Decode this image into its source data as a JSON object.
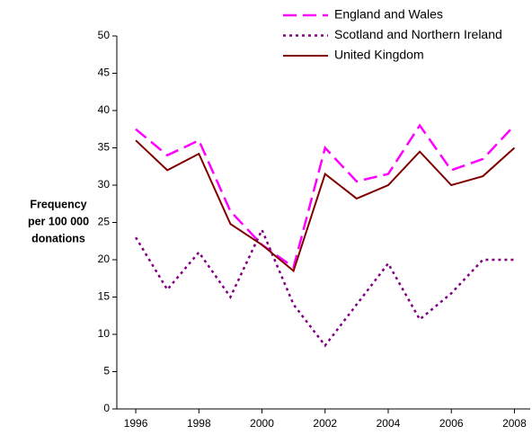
{
  "chart_data": {
    "type": "line",
    "y_label": [
      "Frequency",
      "per 100 000",
      "donations"
    ],
    "x": [
      1996,
      1997,
      1998,
      1999,
      2000,
      2001,
      2002,
      2003,
      2004,
      2005,
      2006,
      2007,
      2008
    ],
    "series": [
      {
        "name": "England and Wales",
        "color": "#ff00ff",
        "style": "dashed",
        "values": [
          37.5,
          34,
          36,
          26.5,
          22,
          19,
          35,
          30.5,
          31.5,
          38,
          32,
          33.5,
          38
        ]
      },
      {
        "name": "Scotland and Northern Ireland",
        "color": "#800080",
        "style": "dotted",
        "values": [
          23,
          16,
          21,
          15,
          24,
          14,
          8.5,
          14,
          19.5,
          12,
          15.5,
          20,
          20
        ]
      },
      {
        "name": "United Kingdom",
        "color": "#800000",
        "style": "solid",
        "values": [
          36,
          32,
          34.2,
          24.8,
          22,
          18.5,
          31.5,
          28.2,
          30,
          34.5,
          30,
          31.2,
          35
        ]
      }
    ],
    "xlim": [
      1995.4,
      2008.5
    ],
    "xticks": [
      1996,
      1998,
      2000,
      2002,
      2004,
      2006,
      2008
    ],
    "ylim": [
      0,
      50
    ],
    "yticks": [
      0,
      5,
      10,
      15,
      20,
      25,
      30,
      35,
      40,
      45,
      50
    ],
    "grid": false,
    "legend": "top-right"
  }
}
